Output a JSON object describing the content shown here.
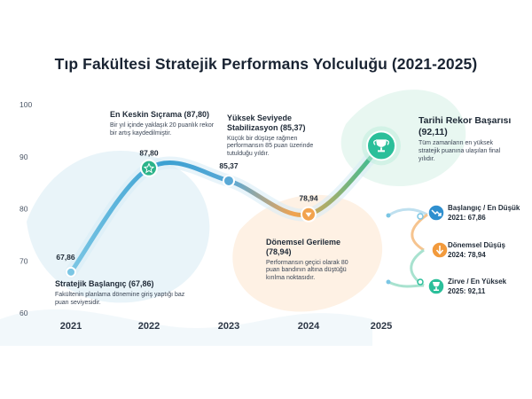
{
  "chart_data": {
    "type": "line",
    "title": "Tıp Fakültesi Stratejik Performans Yolculuğu (2021-2025)",
    "x": [
      "2021",
      "2022",
      "2023",
      "2024",
      "2025"
    ],
    "series": [
      {
        "values": [
          67.86,
          87.8,
          85.37,
          78.94,
          92.11
        ]
      }
    ],
    "point_labels": [
      "67,86",
      "87,80",
      "85,37",
      "78,94",
      ""
    ],
    "y_ticks": [
      "60",
      "70",
      "80",
      "90",
      "100"
    ],
    "ylim": [
      60,
      100
    ],
    "grid": false,
    "colors": {
      "start": "#7bc6e4",
      "mid": "#3aa0d2",
      "dip": "#f2a34e",
      "end": "#2bbf9a"
    }
  },
  "annotations": {
    "start": {
      "title": "Stratejik Başlangıç (67,86)",
      "text": "Fakültenin planlama dönemine giriş yaptığı baz puan seviyesidir."
    },
    "jump": {
      "title": "En Keskin Sıçrama (87,80)",
      "text": "Bir yıl içinde yaklaşık 20 puanlık rekor bir artış kaydedilmiştir."
    },
    "stable": {
      "title": "Yüksek Seviyede Stabilizasyon (85,37)",
      "text": "Küçük bir düşüşe rağmen performansın 85 puan üzerinde tutulduğu yıldır."
    },
    "dip": {
      "title": "Dönemsel Gerileme (78,94)",
      "text": "Performansın geçici olarak 80 puan bandının altına düştüğü kırılma noktasıdır."
    },
    "record": {
      "title": "Tarihi Rekor Başarısı (92,11)",
      "text": "Tüm zamanların en yüksek stratejik puanına ulaşılan final yılıdır."
    }
  },
  "side_panel": {
    "items": [
      {
        "label": "Başlangıç / En Düşük 2021: 67,86",
        "icon": "trend-down-icon",
        "color": "#2f8fcf"
      },
      {
        "label": "Dönemsel Düşüş 2024: 78,94",
        "icon": "arrow-down-icon",
        "color": "#f29a3c"
      },
      {
        "label": "Zirve / En Yüksek 2025: 92,11",
        "icon": "trophy-icon",
        "color": "#2bbf9a"
      }
    ]
  }
}
